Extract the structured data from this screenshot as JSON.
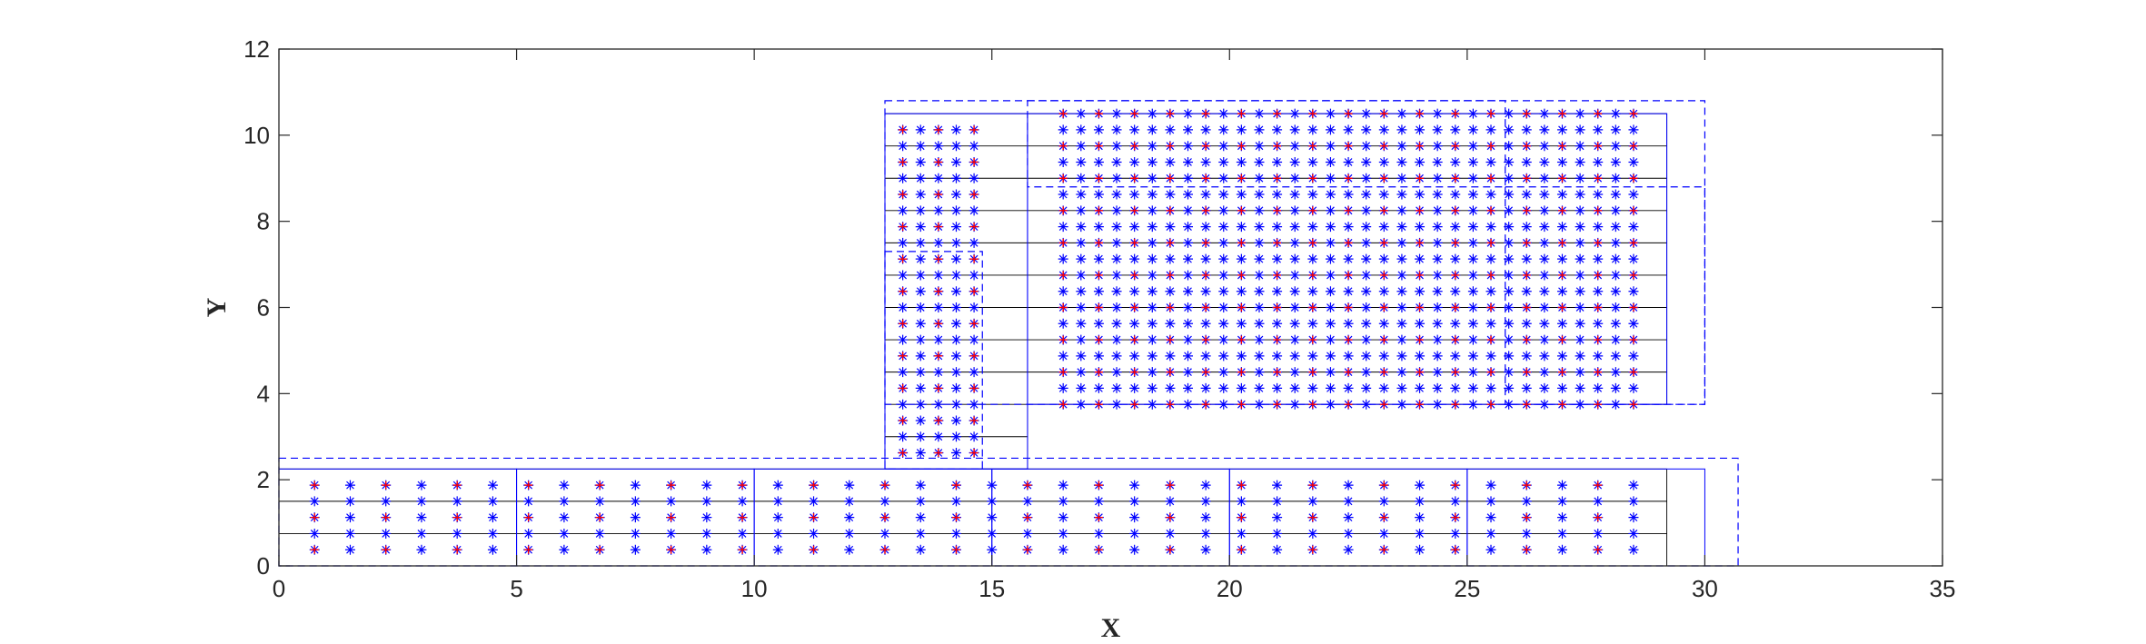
{
  "chart_data": {
    "type": "scatter",
    "title": "",
    "xlabel": "X",
    "ylabel": "Y",
    "xlim": [
      0,
      35
    ],
    "ylim": [
      0,
      12
    ],
    "x_ticks": [
      "0",
      "5",
      "10",
      "15",
      "20",
      "25",
      "30",
      "35"
    ],
    "y_ticks": [
      "0",
      "2",
      "4",
      "6",
      "8",
      "10",
      "12"
    ],
    "grid": false,
    "colors": {
      "axis": "#262626",
      "grid_lines": "#000000",
      "blocks": "#0000ff",
      "points_blue": "#0000ff",
      "points_red": "#ff0000"
    },
    "grid_lines": {
      "bottom_strip": {
        "x_range": [
          0,
          29.2
        ],
        "y_values": [
          0,
          0.75,
          1.5,
          2.25
        ],
        "vertical_x": [
          0,
          29.2
        ]
      },
      "column": {
        "x_range": [
          12.75,
          15.75
        ],
        "y_values": [
          2.25,
          3.0,
          3.75,
          4.5,
          5.25,
          6.0,
          6.75,
          7.5,
          8.25,
          9.0,
          9.75,
          10.5
        ],
        "vertical_x": [
          12.75,
          15.75
        ]
      },
      "top_block": {
        "x_range": [
          15.75,
          29.2
        ],
        "y_values": [
          3.75,
          4.5,
          5.25,
          6.0,
          6.75,
          7.5,
          8.25,
          9.0,
          9.75,
          10.5
        ],
        "vertical_x": [
          15.75,
          29.2
        ]
      }
    },
    "blocks_solid": [
      {
        "x": [
          0,
          5
        ],
        "y": [
          0,
          2.25
        ]
      },
      {
        "x": [
          5,
          10
        ],
        "y": [
          0,
          2.25
        ]
      },
      {
        "x": [
          10,
          15
        ],
        "y": [
          0,
          2.25
        ]
      },
      {
        "x": [
          15,
          20
        ],
        "y": [
          0,
          2.25
        ]
      },
      {
        "x": [
          20,
          25
        ],
        "y": [
          0,
          2.25
        ]
      },
      {
        "x": [
          25,
          30
        ],
        "y": [
          0,
          2.25
        ]
      },
      {
        "x": [
          12.75,
          15.75
        ],
        "y": [
          2.25,
          10.5
        ]
      },
      {
        "x": [
          15.75,
          29.2
        ],
        "y": [
          3.75,
          10.5
        ]
      }
    ],
    "blocks_dashed": [
      {
        "x": [
          0,
          30.7
        ],
        "y": [
          0,
          2.5
        ]
      },
      {
        "x": [
          12.75,
          14.8
        ],
        "y": [
          2.25,
          7.3
        ]
      },
      {
        "x": [
          12.75,
          30
        ],
        "y": [
          3.75,
          10.8
        ]
      },
      {
        "x": [
          15.75,
          25.8
        ],
        "y": [
          8.8,
          10.8
        ]
      },
      {
        "x": [
          25.8,
          30
        ],
        "y": [
          3.75,
          8.8
        ]
      }
    ],
    "series": [
      {
        "marker": "*",
        "color": "#0000ff",
        "groups": [
          {
            "x_start": 0.75,
            "x_step": 0.75,
            "x_count": 38,
            "y_start": 0.375,
            "y_step": 0.375,
            "y_count": 5
          },
          {
            "x_start": 13.125,
            "x_step": 0.375,
            "x_count": 5,
            "y_start": 2.625,
            "y_step": 0.375,
            "y_count": 21
          },
          {
            "x_start": 16.5,
            "x_step": 0.375,
            "x_count": 33,
            "y_start": 3.75,
            "y_step": 0.375,
            "y_count": 19
          }
        ]
      },
      {
        "marker": "+",
        "color": "#ff0000",
        "groups": [
          {
            "x_start": 0.75,
            "x_step": 0.75,
            "x_count": 38,
            "y_start": 0.375,
            "y_step": 0.375,
            "y_count": 5,
            "on_gridlines": true
          },
          {
            "x_start": 13.125,
            "x_step": 0.375,
            "x_count": 5,
            "y_start": 2.625,
            "y_step": 0.375,
            "y_count": 21,
            "on_gridlines": true
          },
          {
            "x_start": 16.5,
            "x_step": 0.375,
            "x_count": 33,
            "y_start": 3.75,
            "y_step": 0.375,
            "y_count": 19,
            "on_gridlines": true
          }
        ]
      }
    ]
  }
}
